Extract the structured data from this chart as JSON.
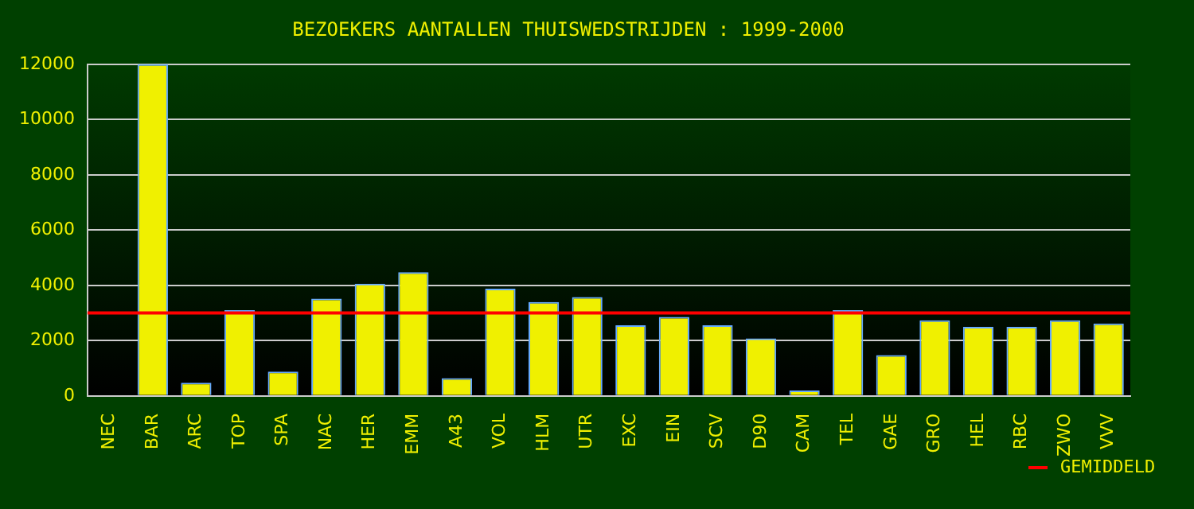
{
  "chart_data": {
    "type": "bar",
    "title": "BEZOEKERS AANTALLEN THUISWEDSTRIJDEN : 1999-2000",
    "categories": [
      "NEC",
      "BAR",
      "ARC",
      "TOP",
      "SPA",
      "NAC",
      "HER",
      "EMM",
      "A43",
      "VOL",
      "HLM",
      "UTR",
      "EXC",
      "EIN",
      "SCV",
      "D90",
      "CAM",
      "TEL",
      "GAE",
      "GRO",
      "HEL",
      "RBC",
      "ZWO",
      "VVV"
    ],
    "values": [
      null,
      12000,
      480,
      3100,
      880,
      3520,
      4060,
      4480,
      640,
      3880,
      3400,
      3580,
      2560,
      2860,
      2560,
      2080,
      200,
      3100,
      1480,
      2740,
      2500,
      2500,
      2740,
      2620
    ],
    "color": "#f0f000",
    "ylim": [
      0,
      12000
    ],
    "yticks": [
      0,
      2000,
      4000,
      6000,
      8000,
      10000,
      12000
    ],
    "grid": "y",
    "legend": "bottom right",
    "ref_lines": [
      {
        "axis": "y",
        "value": 3000,
        "label": "GEMIDDELD",
        "color": "#ff0000"
      }
    ]
  }
}
